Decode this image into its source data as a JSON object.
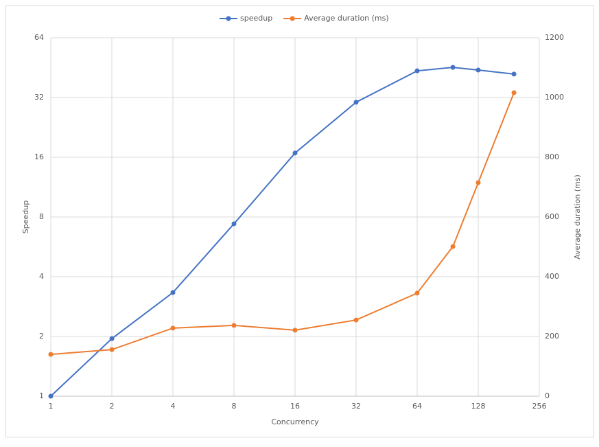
{
  "chart_data": {
    "type": "line",
    "x": [
      1,
      2,
      4,
      8,
      16,
      32,
      64,
      96,
      128,
      192
    ],
    "series": [
      {
        "name": "speedup",
        "color": "#4472c4",
        "values": [
          1,
          1.95,
          3.33,
          7.39,
          16.8,
          30.3,
          43.6,
          45.4,
          44,
          42
        ]
      },
      {
        "name": "Average duration (ms)",
        "color": "#ed7d31",
        "axis": "y2",
        "values": [
          140,
          156,
          228,
          237,
          221,
          255,
          345,
          501,
          715,
          1016
        ]
      }
    ],
    "xlabel": "Concurrency",
    "ylabel": "Speedup",
    "y2label": "Average duration (ms)",
    "xlim": [
      1,
      256
    ],
    "xticks": [
      1,
      2,
      4,
      8,
      16,
      32,
      64,
      128,
      256
    ],
    "xscale": "log2",
    "ylim": [
      1,
      64
    ],
    "yticks": [
      1,
      2,
      4,
      8,
      16,
      32,
      64
    ],
    "yscale": "log2",
    "y2lim": [
      0,
      1200
    ],
    "y2ticks": [
      0,
      200,
      400,
      600,
      800,
      1000,
      1200
    ],
    "grid": true,
    "legend": "top"
  }
}
